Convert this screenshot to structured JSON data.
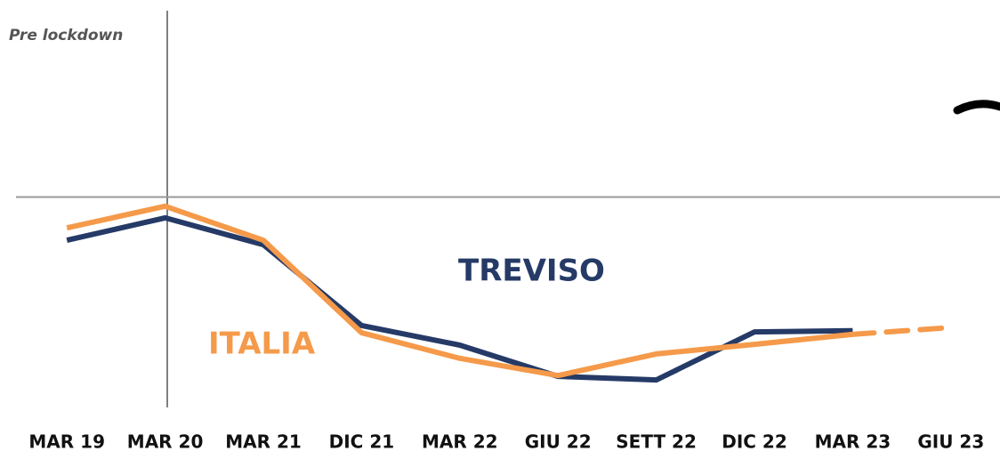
{
  "chart_data": {
    "type": "line",
    "annotations": [
      "Pre lockdown"
    ],
    "categories": [
      "MAR 19",
      "MAR 20",
      "MAR 21",
      "DIC 21",
      "MAR 22",
      "GIU 22",
      "SETT 22",
      "DIC 22",
      "MAR 23",
      "GIU 23"
    ],
    "series": [
      {
        "name": "TREVISO",
        "color": "#253a66",
        "values": [
          42.2,
          47.8,
          41.1,
          20.9,
          16.0,
          8.2,
          7.3,
          19.3,
          19.6,
          null
        ]
      },
      {
        "name": "ITALIA",
        "color": "#f59a4a",
        "values": [
          45.3,
          50.7,
          42.2,
          19.1,
          12.7,
          8.4,
          13.8,
          16.2,
          18.7,
          20.4
        ],
        "dashed_from": 8
      }
    ],
    "reference_line": 53,
    "ylim": [
      0,
      100
    ]
  }
}
